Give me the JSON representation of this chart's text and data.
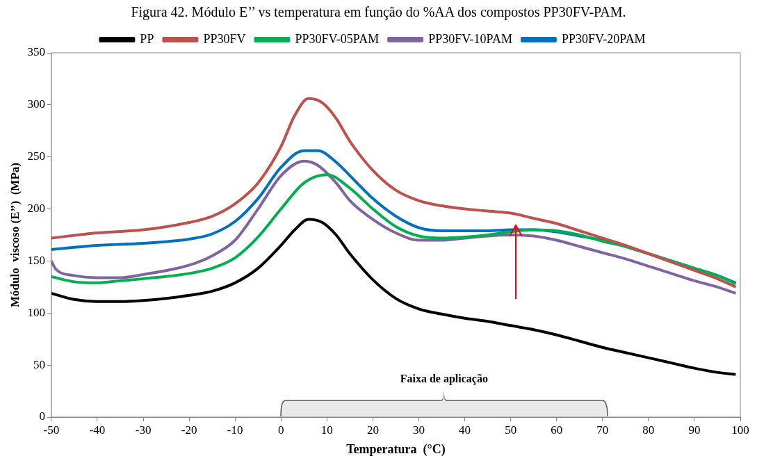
{
  "chart_data": {
    "type": "line",
    "title": "Figura 42. Módulo E’’ vs temperatura em função do %AA dos compostos PP30FV-PAM.",
    "xlabel": "Temperatura  (°C)",
    "ylabel": "Módulo  viscoso (E’’)  (MPa)",
    "xlim": [
      -50,
      100
    ],
    "xticks": [
      -50,
      -40,
      -30,
      -20,
      -10,
      0,
      10,
      20,
      30,
      40,
      50,
      60,
      70,
      80,
      90,
      100
    ],
    "ylim": [
      0,
      350
    ],
    "yticks": [
      0,
      50,
      100,
      150,
      200,
      250,
      300,
      350
    ],
    "grid": false,
    "legend": "top",
    "marker": "none",
    "line_style": "solid",
    "bands": [
      {
        "axis": "x",
        "from": 0,
        "to": 71,
        "label": "Faixa de aplicação",
        "color": "#595959"
      }
    ],
    "series": [
      {
        "name": "PP",
        "color": "#000000",
        "x": [
          -50,
          -45,
          -40,
          -35,
          -30,
          -25,
          -20,
          -15,
          -10,
          -5,
          0,
          3,
          6,
          9,
          12,
          15,
          20,
          25,
          30,
          35,
          40,
          45,
          50,
          55,
          60,
          65,
          70,
          75,
          80,
          85,
          90,
          95,
          99
        ],
        "values": [
          119,
          113,
          111,
          111,
          112,
          114,
          117,
          121,
          129,
          143,
          165,
          180,
          190,
          187,
          175,
          157,
          132,
          114,
          104,
          99,
          95,
          92,
          88,
          84,
          79,
          73,
          67,
          62,
          57,
          52,
          47,
          43,
          41
        ]
      },
      {
        "name": "PP30FV",
        "color": "#c0504d",
        "x": [
          -50,
          -40,
          -30,
          -20,
          -15,
          -10,
          -5,
          0,
          3,
          6,
          9,
          12,
          15,
          20,
          25,
          30,
          35,
          40,
          45,
          50,
          55,
          60,
          65,
          70,
          75,
          80,
          85,
          90,
          95,
          99
        ],
        "values": [
          172,
          177,
          180,
          187,
          193,
          205,
          225,
          260,
          290,
          306,
          302,
          287,
          265,
          237,
          218,
          208,
          203,
          200,
          198,
          196,
          191,
          186,
          179,
          172,
          165,
          157,
          149,
          141,
          133,
          125
        ]
      },
      {
        "name": "PP30FV-05PAM",
        "color": "#00b050",
        "x": [
          -50,
          -45,
          -40,
          -35,
          -30,
          -20,
          -15,
          -10,
          -5,
          0,
          5,
          10,
          15,
          20,
          25,
          30,
          35,
          40,
          45,
          50,
          55,
          60,
          65,
          70,
          75,
          80,
          85,
          90,
          95,
          99
        ],
        "values": [
          135,
          130,
          129,
          131,
          133,
          138,
          143,
          153,
          173,
          200,
          225,
          233,
          220,
          200,
          183,
          174,
          172,
          173,
          175,
          178,
          180,
          179,
          175,
          169,
          164,
          157,
          150,
          143,
          136,
          128
        ]
      },
      {
        "name": "PP30FV-10PAM",
        "color": "#8064a2",
        "x": [
          -50,
          -49,
          -45,
          -40,
          -35,
          -30,
          -20,
          -15,
          -10,
          -5,
          0,
          5,
          8,
          12,
          15,
          20,
          25,
          30,
          35,
          40,
          45,
          50,
          55,
          60,
          65,
          70,
          75,
          80,
          85,
          90,
          95,
          99
        ],
        "values": [
          150,
          142,
          136,
          134,
          134,
          137,
          146,
          155,
          170,
          200,
          232,
          246,
          242,
          225,
          208,
          190,
          177,
          170,
          170,
          172,
          174,
          175,
          174,
          170,
          164,
          158,
          152,
          145,
          138,
          131,
          125,
          119
        ]
      },
      {
        "name": "PP30FV-20PAM",
        "color": "#0070c0",
        "x": [
          -50,
          -40,
          -30,
          -20,
          -15,
          -10,
          -5,
          0,
          5,
          8,
          12,
          15,
          20,
          25,
          30,
          35,
          40,
          45,
          50,
          55,
          60,
          65,
          70,
          75,
          80,
          85,
          90,
          95,
          99
        ],
        "values": [
          161,
          165,
          167,
          171,
          176,
          188,
          210,
          240,
          256,
          256,
          245,
          232,
          210,
          193,
          182,
          179,
          179,
          179,
          180,
          180,
          178,
          174,
          170,
          164,
          157,
          150,
          143,
          136,
          129
        ]
      }
    ]
  }
}
